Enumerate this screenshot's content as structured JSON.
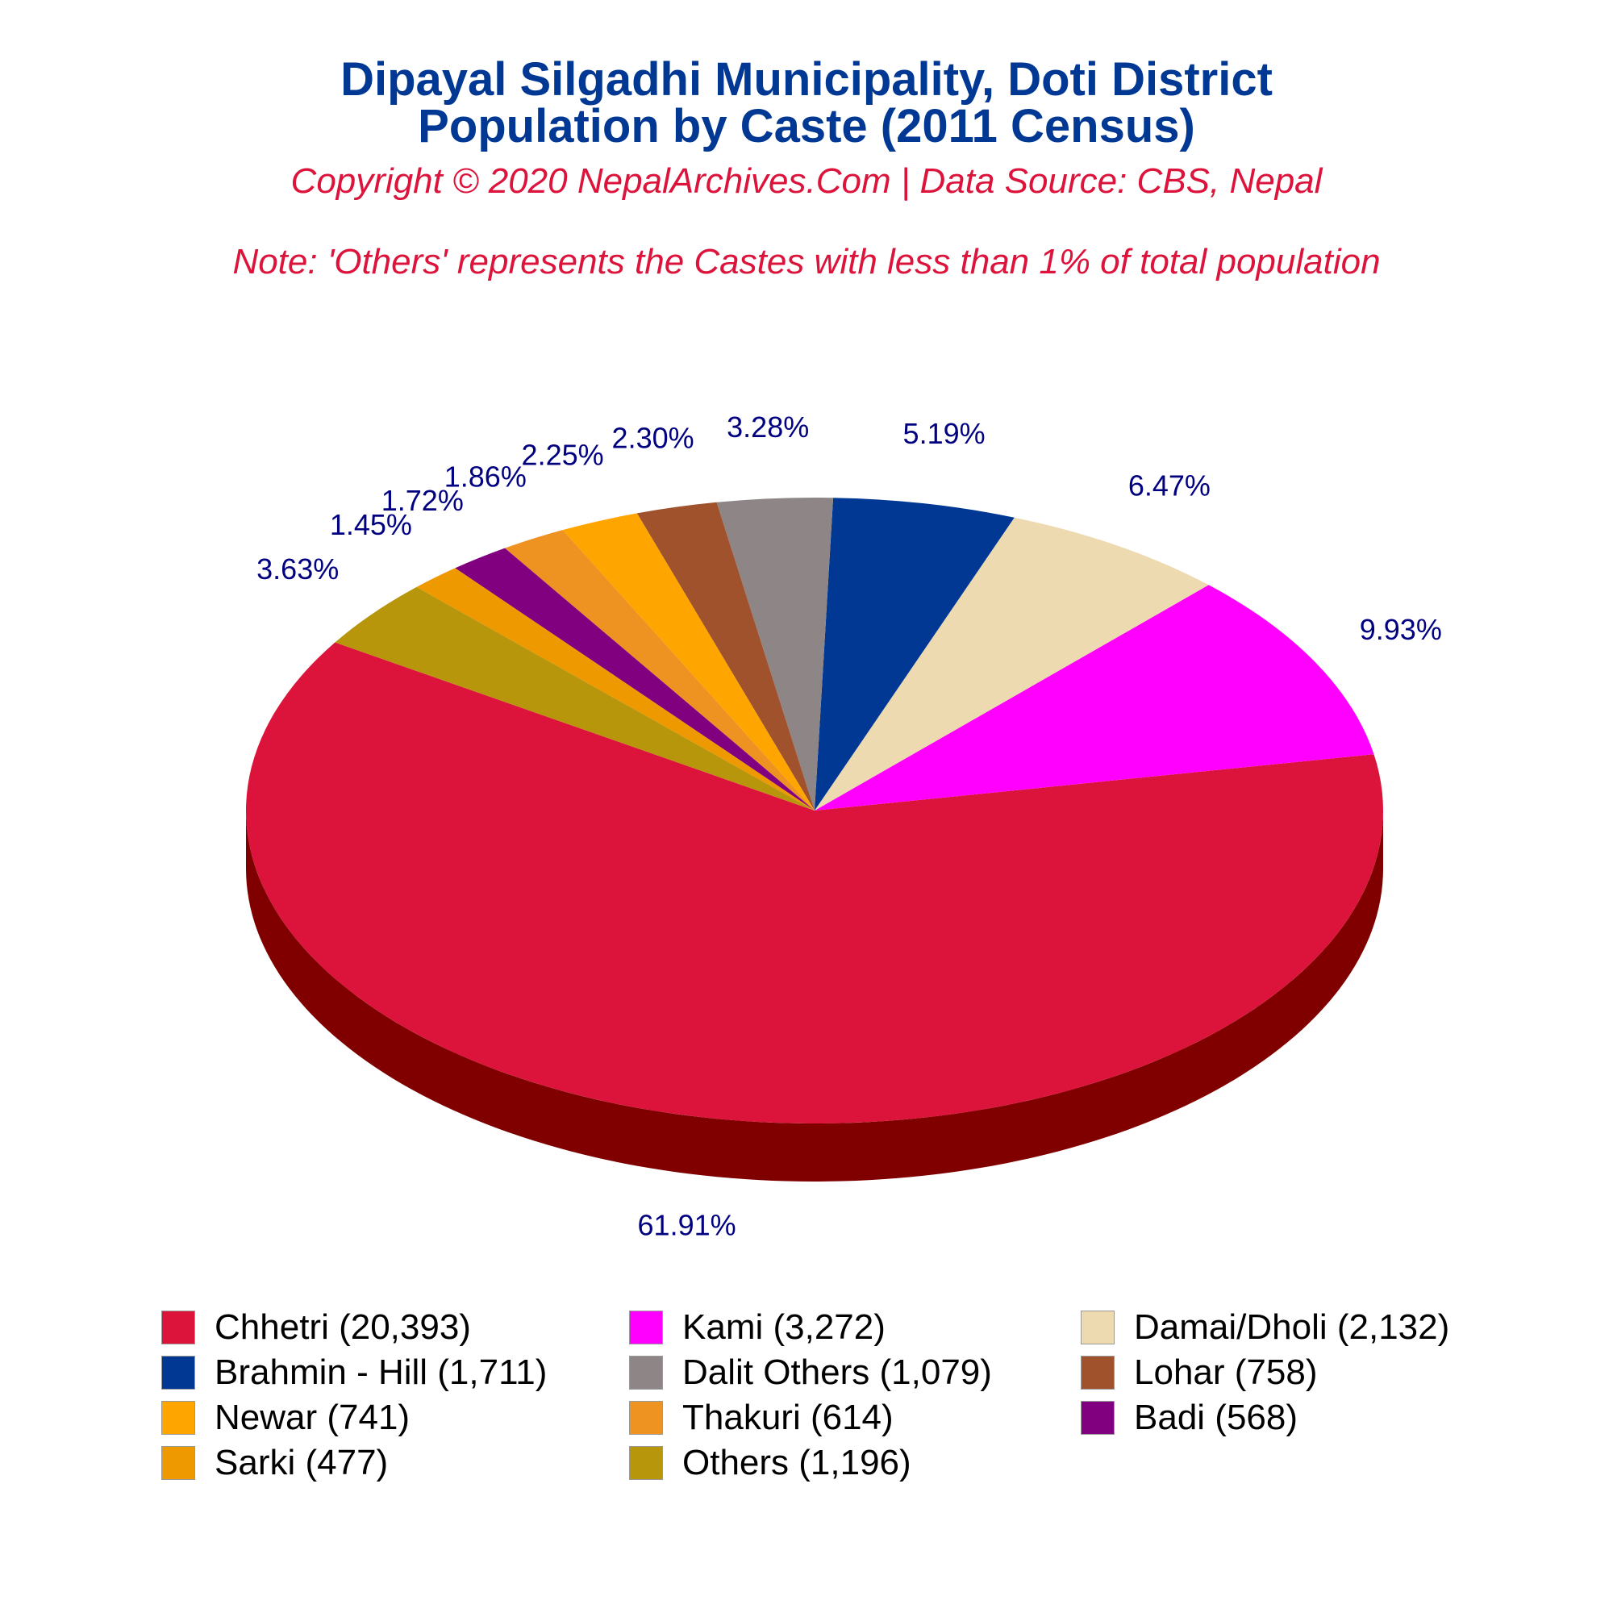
{
  "header": {
    "title_line1": "Dipayal Silgadhi Municipality, Doti District",
    "title_line2": "Population by Caste (2011 Census)",
    "subtitle": "Copyright © 2020 NepalArchives.Com | Data Source: CBS, Nepal",
    "note": "Note: 'Others' represents the Castes with less than 1% of total population"
  },
  "chart_data": {
    "type": "pie",
    "style": "3d",
    "legend_position": "bottom",
    "slices": [
      {
        "name": "Chhetri",
        "legend": "Chhetri (20,393)",
        "value": 20393,
        "percent_label": "61.91%",
        "color": "#DC143C"
      },
      {
        "name": "Kami",
        "legend": "Kami (3,272)",
        "value": 3272,
        "percent_label": "9.93%",
        "color": "#FF00FF"
      },
      {
        "name": "Damai/Dholi",
        "legend": "Damai/Dholi (2,132)",
        "value": 2132,
        "percent_label": "6.47%",
        "color": "#EEDAB0"
      },
      {
        "name": "Brahmin - Hill",
        "legend": "Brahmin - Hill (1,711)",
        "value": 1711,
        "percent_label": "5.19%",
        "color": "#003893"
      },
      {
        "name": "Dalit Others",
        "legend": "Dalit Others (1,079)",
        "value": 1079,
        "percent_label": "3.28%",
        "color": "#8E8587"
      },
      {
        "name": "Lohar",
        "legend": "Lohar (758)",
        "value": 758,
        "percent_label": "2.30%",
        "color": "#A0522D"
      },
      {
        "name": "Newar",
        "legend": "Newar (741)",
        "value": 741,
        "percent_label": "2.25%",
        "color": "#FFA500"
      },
      {
        "name": "Thakuri",
        "legend": "Thakuri (614)",
        "value": 614,
        "percent_label": "1.86%",
        "color": "#EE9222"
      },
      {
        "name": "Badi",
        "legend": "Badi (568)",
        "value": 568,
        "percent_label": "1.72%",
        "color": "#800080"
      },
      {
        "name": "Sarki",
        "legend": "Sarki (477)",
        "value": 477,
        "percent_label": "1.45%",
        "color": "#EE9900"
      },
      {
        "name": "Others",
        "legend": "Others (1,196)",
        "value": 1196,
        "percent_label": "3.63%",
        "color": "#B8960B"
      }
    ],
    "side_colors": [
      "#800000",
      "#A400A4",
      "#948053",
      "#000040",
      "#2E2626",
      "#3A1A10",
      "#805000",
      "#774000",
      "#400040",
      "#774D00",
      "#5C4B06"
    ],
    "label_color": "#000080"
  }
}
